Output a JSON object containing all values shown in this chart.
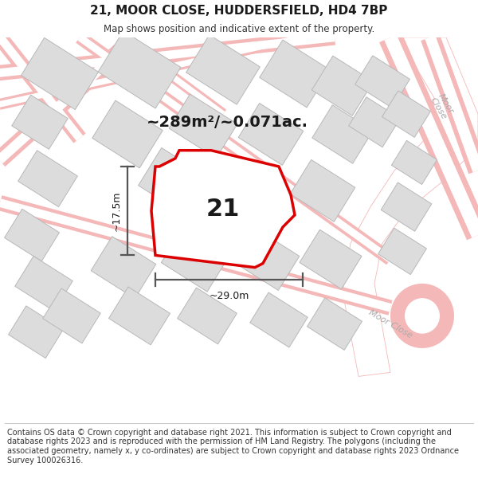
{
  "title": "21, MOOR CLOSE, HUDDERSFIELD, HD4 7BP",
  "subtitle": "Map shows position and indicative extent of the property.",
  "area_text": "~289m²/~0.071ac.",
  "dim_width": "~29.0m",
  "dim_height": "~17.5m",
  "label_number": "21",
  "footer": "Contains OS data © Crown copyright and database right 2021. This information is subject to Crown copyright and database rights 2023 and is reproduced with the permission of HM Land Registry. The polygons (including the associated geometry, namely x, y co-ordinates) are subject to Crown copyright and database rights 2023 Ordnance Survey 100026316.",
  "bg_color": "#f2f2f0",
  "building_color": "#dcdcdc",
  "building_stroke": "#b8b8b8",
  "highlight_color": "#dd0000",
  "road_line_color": "#f5b8b8",
  "road_fill_color": "#ffffff",
  "street_label_color": "#aaaaaa",
  "title_font": "DejaVu Sans",
  "title_fontsize": 11,
  "subtitle_fontsize": 8.5,
  "area_fontsize": 14,
  "number_fontsize": 22,
  "dim_fontsize": 9,
  "footer_fontsize": 7
}
